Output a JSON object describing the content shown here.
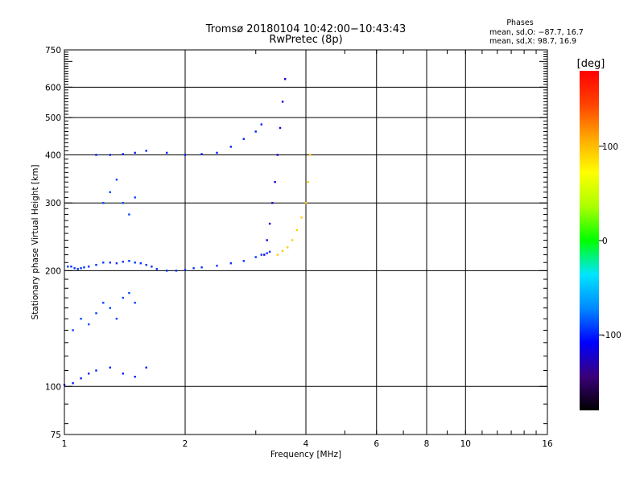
{
  "chart_data": {
    "type": "scatter",
    "title": "Tromsø 20180104 10:42:00−10:43:43",
    "subtitle": "RwPretec (8p)",
    "xlabel": "Frequency [MHz]",
    "ylabel": "Stationary phase Virtual Height [km]",
    "x_scale": "log",
    "y_scale": "log",
    "xlim": [
      1,
      16
    ],
    "ylim": [
      75,
      750
    ],
    "x_ticks": [
      1,
      2,
      4,
      6,
      8,
      10,
      16
    ],
    "y_ticks": [
      75,
      100,
      200,
      300,
      400,
      500,
      600,
      750
    ],
    "x_gridlines": [
      2,
      4,
      6,
      8,
      10
    ],
    "y_gridlines": [
      100,
      200,
      300,
      400,
      500,
      600
    ],
    "phases_box": {
      "heading": "Phases",
      "line_o": "mean, sd,O: −87.7, 16.7",
      "line_x": "mean, sd,X:  98.7, 16.9"
    },
    "colorbar": {
      "label": "[deg]",
      "ticks": [
        100,
        0,
        -100
      ],
      "range": [
        -180,
        180
      ],
      "colors": [
        "#000000",
        "#3a007a",
        "#0000ff",
        "#0088ff",
        "#00e5ff",
        "#00ff00",
        "#aaff00",
        "#ffff00",
        "#ffaa00",
        "#ff4400",
        "#ff0000"
      ]
    },
    "series": [
      {
        "x": [
          1.02,
          1.04,
          1.06,
          1.08,
          1.1,
          1.12,
          1.15,
          1.2,
          1.25,
          1.3,
          1.35,
          1.4,
          1.45,
          1.5,
          1.55,
          1.6,
          1.65,
          1.7,
          1.8,
          1.9,
          2.0,
          2.1,
          2.2,
          2.4,
          2.6,
          2.8,
          3.0,
          3.1,
          3.2,
          3.25
        ],
        "y": [
          205,
          205,
          203,
          202,
          203,
          204,
          205,
          207,
          210,
          210,
          209,
          211,
          212,
          210,
          209,
          207,
          205,
          202,
          200,
          200,
          201,
          203,
          204,
          206,
          209,
          212,
          217,
          220,
          222,
          224
        ],
        "phase": -95
      },
      {
        "x": [
          1.25,
          1.3,
          1.35,
          1.4,
          1.45,
          1.5
        ],
        "y": [
          300,
          320,
          345,
          300,
          280,
          310
        ],
        "phase": -90
      },
      {
        "x": [
          1.2,
          1.3,
          1.4,
          1.5,
          1.6,
          1.8,
          2.0,
          2.2,
          2.4,
          2.6,
          2.8,
          3.0,
          3.1
        ],
        "y": [
          400,
          400,
          402,
          405,
          410,
          405,
          400,
          402,
          405,
          420,
          440,
          460,
          480
        ],
        "phase": -100
      },
      {
        "x": [
          3.15,
          3.2,
          3.25,
          3.3,
          3.35,
          3.4,
          3.45,
          3.5,
          3.55
        ],
        "y": [
          220,
          240,
          265,
          300,
          340,
          400,
          470,
          550,
          630
        ],
        "phase": -120
      },
      {
        "x": [
          3.4,
          3.5,
          3.6,
          3.7,
          3.8,
          3.9,
          4.0,
          4.05,
          4.1
        ],
        "y": [
          220,
          225,
          230,
          240,
          255,
          275,
          300,
          340,
          400
        ],
        "phase": 95
      },
      {
        "x": [
          1.05,
          1.1,
          1.15,
          1.2,
          1.25,
          1.3,
          1.35,
          1.4,
          1.45,
          1.5
        ],
        "y": [
          140,
          150,
          145,
          155,
          165,
          160,
          150,
          170,
          175,
          165
        ],
        "phase": -90
      },
      {
        "x": [
          1.0,
          1.05,
          1.1,
          1.15,
          1.2,
          1.3,
          1.4,
          1.5,
          1.6
        ],
        "y": [
          101,
          102,
          105,
          108,
          110,
          112,
          108,
          106,
          112
        ],
        "phase": -100
      }
    ]
  }
}
